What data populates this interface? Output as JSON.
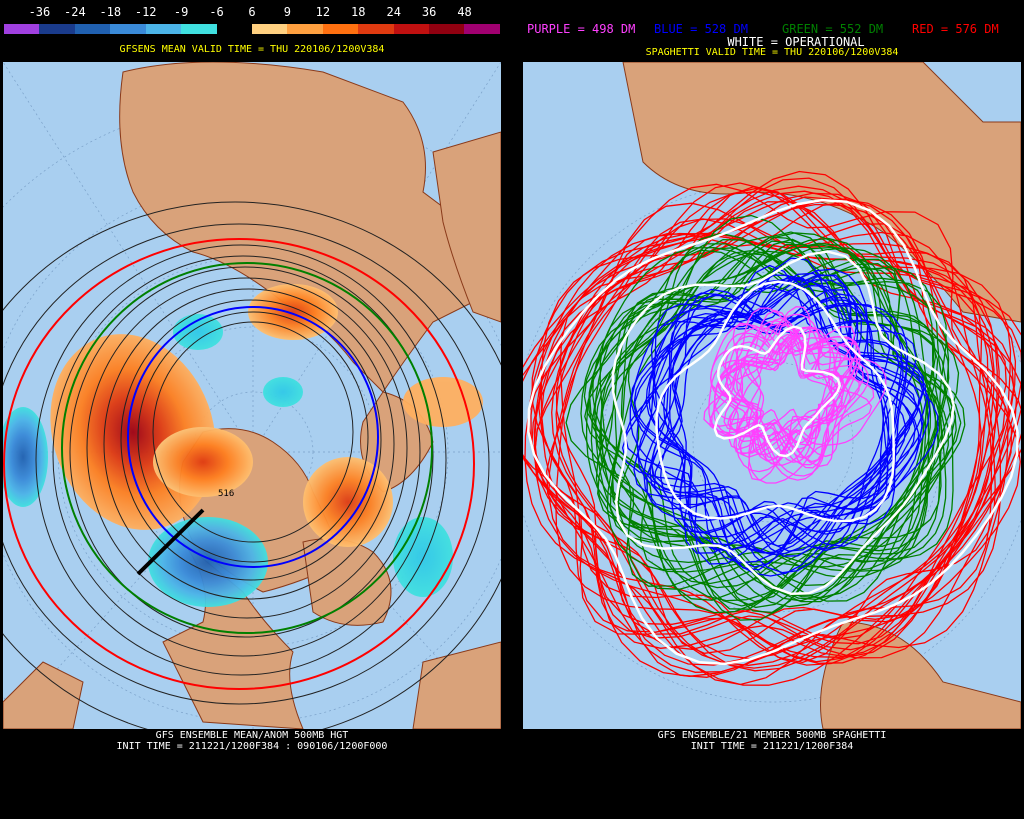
{
  "legend": {
    "ticks": [
      "-36",
      "-24",
      "-18",
      "-12",
      "-9",
      "-6",
      "6",
      "9",
      "12",
      "18",
      "24",
      "36",
      "48"
    ],
    "colors": [
      "#a040e0",
      "#1a3b8c",
      "#2060b0",
      "#3a8ad8",
      "#4cb4e8",
      "#40e0e0",
      "#000000",
      "#ffd080",
      "#ffa040",
      "#ff7010",
      "#e03a10",
      "#c01010",
      "#900010",
      "#a00070"
    ]
  },
  "left": {
    "title": "GFSENS MEAN VALID TIME = THU 220106/1200V384",
    "contour_label": "516",
    "footer_line1": "GFS ENSEMBLE MEAN/ANOM 500MB HGT",
    "footer_line2": "INIT TIME = 211221/1200F384 : 090106/1200F000"
  },
  "right": {
    "header_purple": "PURPLE = 498 DM",
    "header_blue": "BLUE = 528 DM",
    "header_green": "GREEN = 552 DM",
    "header_red": "RED = 576 DM",
    "header_white": "WHITE = OPERATIONAL",
    "title": "SPAGHETTI VALID TIME = THU 220106/1200V384",
    "footer_line1": "GFS ENSEMBLE/21 MEMBER 500MB SPAGHETTI",
    "footer_line2": "INIT TIME = 211221/1200F384"
  },
  "colors": {
    "ocean": "#a9cff0",
    "land": "#d9a27a",
    "border": "#8a3a1a",
    "purple": "#ff40ff",
    "blue": "#0000ff",
    "green": "#008000",
    "red": "#ff0000",
    "white": "#ffffff"
  }
}
